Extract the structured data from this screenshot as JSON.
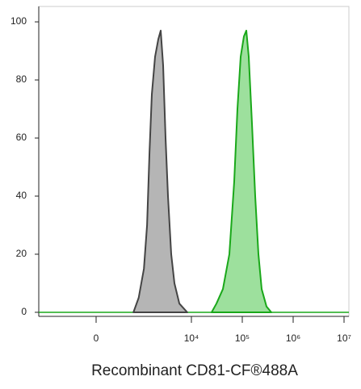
{
  "chart_data": {
    "type": "area",
    "xlabel": "Recombinant CD81-CF®488A",
    "xscale": "biexponential",
    "xlim": [
      -1785,
      12450000
    ],
    "xticks": [
      0,
      {
        "value": 10000,
        "label": "10⁴"
      },
      {
        "value": 100000,
        "label": "10⁵"
      },
      {
        "value": 1000000,
        "label": "10⁶"
      },
      {
        "value": 10000000,
        "label": "10⁷"
      }
    ],
    "ylim": [
      -1.4,
      105.3
    ],
    "yticks": [
      0,
      20,
      40,
      60,
      80,
      100
    ],
    "series": [
      {
        "color": "#444444",
        "fill": "#b5b5b5",
        "x": [
          700,
          900,
          1150,
          1330,
          1490,
          1660,
          1920,
          2230,
          2490,
          2780,
          3100,
          3460,
          4000,
          4640,
          5790,
          8300
        ],
        "values": [
          0,
          5,
          15,
          30,
          55,
          75,
          88,
          94,
          97,
          85,
          60,
          40,
          20,
          10,
          3,
          0
        ]
      },
      {
        "color": "#1aa81a",
        "fill": "#9de09d",
        "x": [
          24900,
          31000,
          41600,
          55700,
          69400,
          80400,
          92900,
          107600,
          120000,
          134000,
          154900,
          179500,
          207600,
          240500,
          299400,
          372500
        ],
        "values": [
          0,
          3,
          8,
          20,
          45,
          70,
          88,
          95,
          97,
          88,
          65,
          40,
          20,
          8,
          2,
          0
        ]
      }
    ]
  }
}
